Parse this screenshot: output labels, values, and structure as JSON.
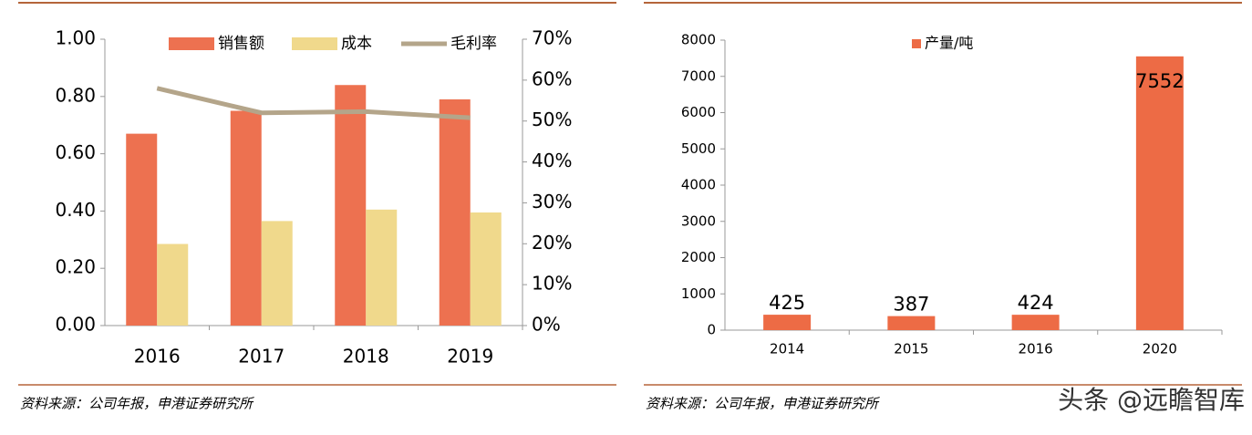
{
  "chart_data": [
    {
      "type": "bar",
      "categories": [
        "2016",
        "2017",
        "2018",
        "2019"
      ],
      "series": [
        {
          "name": "销售额",
          "color": "#ED7150",
          "values": [
            0.67,
            0.75,
            0.84,
            0.79
          ]
        },
        {
          "name": "成本",
          "color": "#F0D98C",
          "values": [
            0.285,
            0.365,
            0.405,
            0.395
          ]
        },
        {
          "name": "毛利率",
          "color": "#B4A58A",
          "type": "line",
          "axis": "y2",
          "values": [
            58,
            52,
            52.3,
            50.8
          ]
        }
      ],
      "ylim": [
        0,
        1
      ],
      "yticks": [
        {
          "value": 0,
          "label": "0.00"
        },
        {
          "value": 0.2,
          "label": "0.20"
        },
        {
          "value": 0.4,
          "label": "0.40"
        },
        {
          "value": 0.6,
          "label": "0.60"
        },
        {
          "value": 0.8,
          "label": "0.80"
        },
        {
          "value": 1,
          "label": "1.00"
        }
      ],
      "y2lim": [
        0,
        70
      ],
      "y2ticks": [
        {
          "value": 0,
          "label": "0%"
        },
        {
          "value": 10,
          "label": "10%"
        },
        {
          "value": 20,
          "label": "20%"
        },
        {
          "value": 30,
          "label": "30%"
        },
        {
          "value": 40,
          "label": "40%"
        },
        {
          "value": 50,
          "label": "50%"
        },
        {
          "value": 60,
          "label": "60%"
        },
        {
          "value": 70,
          "label": "70%"
        }
      ]
    },
    {
      "type": "bar",
      "categories": [
        "2014",
        "2015",
        "2016",
        "2020"
      ],
      "series": [
        {
          "name": "产量/吨",
          "color": "#ED6B45",
          "values": [
            425,
            387,
            424,
            7552
          ]
        }
      ],
      "ylim": [
        0,
        8000
      ],
      "yticks": [
        0,
        1000,
        2000,
        3000,
        4000,
        5000,
        6000,
        7000,
        8000
      ]
    }
  ],
  "sources": [
    "资料来源：公司年报，申港证券研究所",
    "资料来源：公司年报，申港证券研究所"
  ],
  "watermark": "头条 @远瞻智库"
}
